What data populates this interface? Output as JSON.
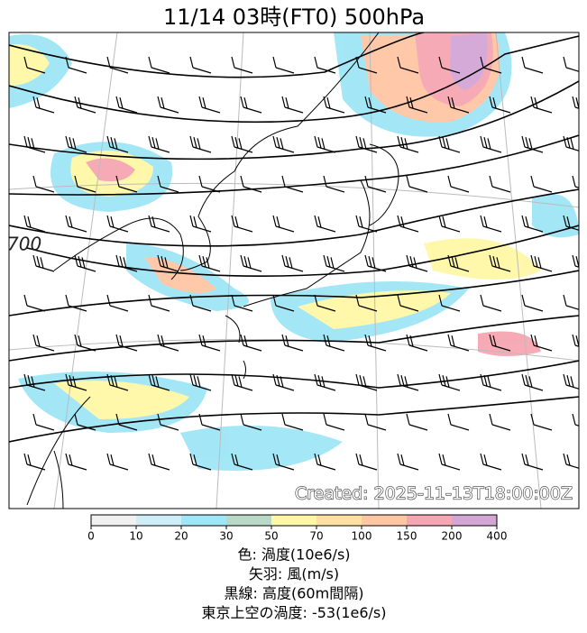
{
  "header": {
    "title": "11/14  03時(FT0)     500hPa"
  },
  "map": {
    "created": "Created: 2025-11-13T18:00:00Z",
    "contour_label": "700"
  },
  "colorbar": {
    "ticks": [
      0,
      10,
      20,
      30,
      50,
      70,
      100,
      150,
      200,
      400
    ],
    "colors": [
      "#f0f0f0",
      "#cdeef6",
      "#9fe6f6",
      "#b9d9c6",
      "#fff7a6",
      "#ffe0a0",
      "#ffc6a4",
      "#f6a6b2",
      "#d4a6d6"
    ]
  },
  "legend": [
    "色: 渦度(10e6/s)",
    "矢羽: 風(m/s)",
    "黒線: 高度(60m間隔)",
    "東京上空の渦度: -53(1e6/s)"
  ]
}
